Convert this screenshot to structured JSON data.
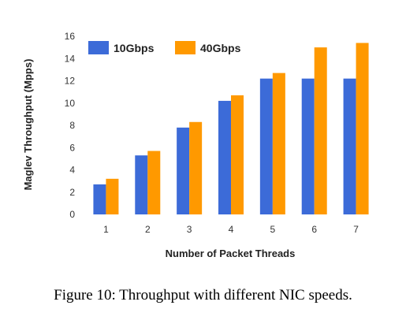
{
  "chart_data": {
    "type": "bar",
    "title": "",
    "xlabel": "Number of Packet Threads",
    "ylabel": "Maglev Throughput (Mpps)",
    "ylim": [
      0,
      16
    ],
    "yticks": [
      0,
      2,
      4,
      6,
      8,
      10,
      12,
      14,
      16
    ],
    "categories": [
      "1",
      "2",
      "3",
      "4",
      "5",
      "6",
      "7"
    ],
    "series": [
      {
        "name": "10Gbps",
        "color": "#3c6bd8",
        "values": [
          2.7,
          5.3,
          7.8,
          10.2,
          12.2,
          12.2,
          12.2
        ]
      },
      {
        "name": "40Gbps",
        "color": "#ff9900",
        "values": [
          3.2,
          5.7,
          8.3,
          10.7,
          12.7,
          15.0,
          15.4
        ]
      }
    ],
    "legend": "top-left"
  },
  "caption": "Figure 10: Throughput with different NIC speeds."
}
